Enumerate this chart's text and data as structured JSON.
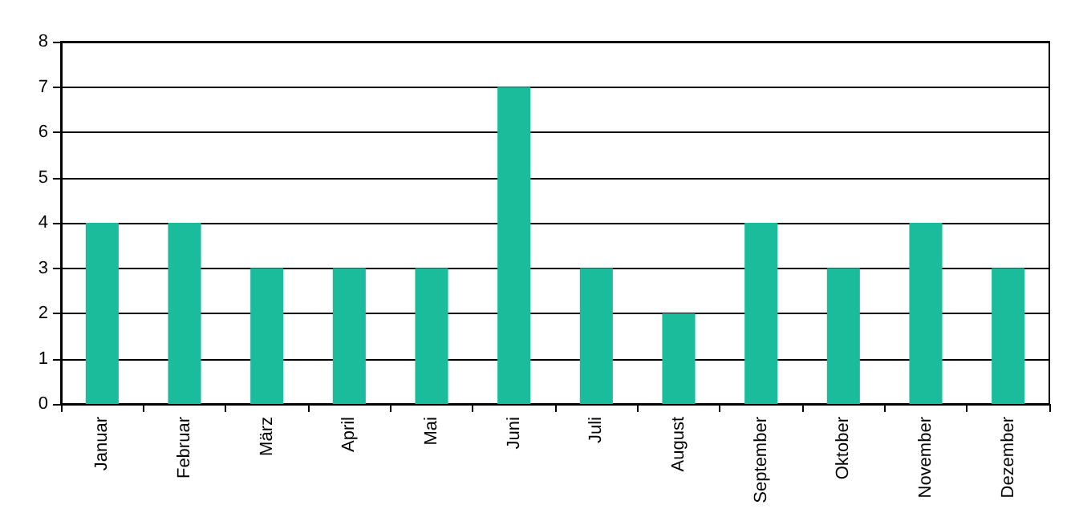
{
  "chart_data": {
    "type": "bar",
    "categories": [
      "Januar",
      "Februar",
      "März",
      "April",
      "Mai",
      "Juni",
      "Juli",
      "August",
      "September",
      "Oktober",
      "November",
      "Dezember"
    ],
    "values": [
      4,
      4,
      3,
      3,
      3,
      7,
      3,
      2,
      4,
      3,
      4,
      3
    ],
    "color": "#1abc9c",
    "ylim": [
      0,
      8
    ],
    "yticks": [
      0,
      1,
      2,
      3,
      4,
      5,
      6,
      7,
      8
    ],
    "grid": "y"
  }
}
